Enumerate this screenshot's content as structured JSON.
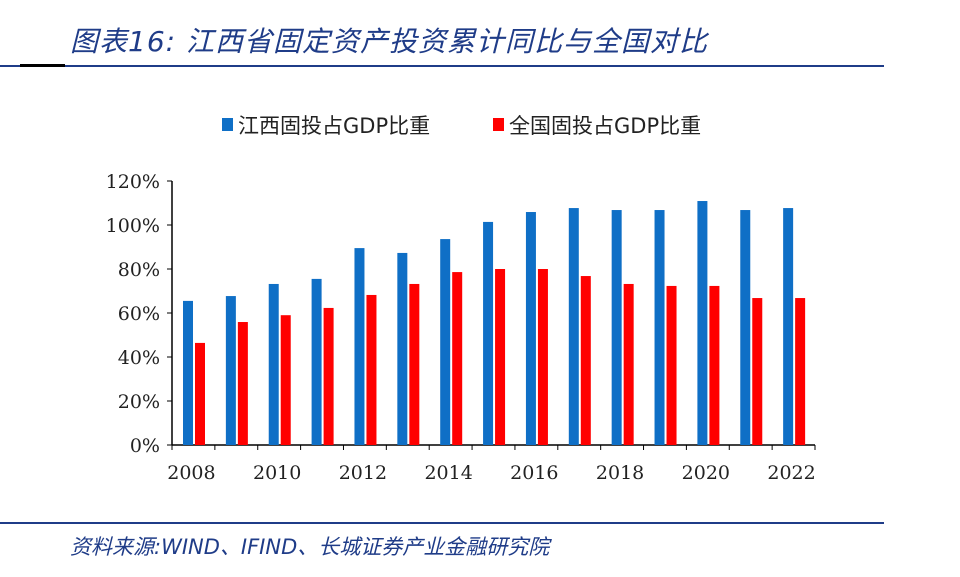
{
  "title": "图表16: 江西省固定资产投资累计同比与全国对比",
  "source": "资料来源:WIND、IFIND、长城证券产业金融研究院",
  "chart_data": {
    "type": "bar",
    "categories": [
      "2008",
      "2009",
      "2010",
      "2011",
      "2012",
      "2013",
      "2014",
      "2015",
      "2016",
      "2017",
      "2018",
      "2019",
      "2020",
      "2021",
      "2022"
    ],
    "xtick_labels": [
      "2008",
      "2010",
      "2012",
      "2014",
      "2016",
      "2018",
      "2020",
      "2022"
    ],
    "ylim": [
      0,
      120
    ],
    "yticks": [
      "0%",
      "20%",
      "40%",
      "60%",
      "80%",
      "100%",
      "120%"
    ],
    "legend_position": "top",
    "series": [
      {
        "name": "江西固投占GDP比重",
        "color": "#0f6fc6",
        "values": [
          65.5,
          67.7,
          73.2,
          75.5,
          89.5,
          87.3,
          93.6,
          101.4,
          105.9,
          107.7,
          106.8,
          106.8,
          110.9,
          106.8,
          107.7
        ]
      },
      {
        "name": "全国固投占GDP比重",
        "color": "#ff0000",
        "values": [
          46.4,
          55.9,
          59.0,
          62.3,
          68.2,
          73.2,
          78.6,
          80.0,
          80.0,
          76.8,
          73.2,
          72.3,
          72.3,
          66.8,
          66.8
        ]
      }
    ]
  }
}
